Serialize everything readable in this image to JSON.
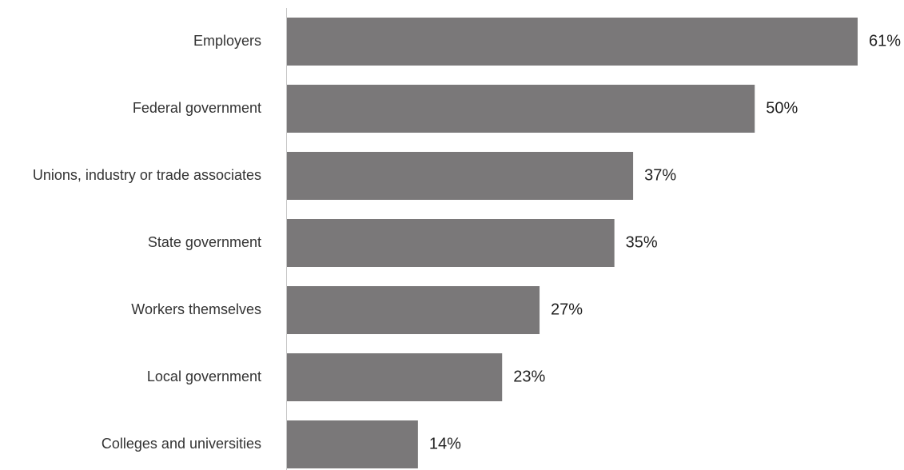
{
  "chart_data": {
    "type": "bar",
    "orientation": "horizontal",
    "categories": [
      "Employers",
      "Federal government",
      "Unions, industry or trade associates",
      "State government",
      "Workers themselves",
      "Local government",
      "Colleges and universities"
    ],
    "values": [
      61,
      50,
      37,
      35,
      27,
      23,
      14
    ],
    "value_labels": [
      "61%",
      "50%",
      "37%",
      "35%",
      "27%",
      "23%",
      "14%"
    ],
    "title": "",
    "xlabel": "",
    "ylabel": "",
    "xlim": [
      0,
      61
    ],
    "grid": false,
    "legend": "none",
    "colors": {
      "bar": "#7a7879",
      "axis": "#c8c8c8",
      "category_text": "#333333",
      "value_text": "#222222"
    }
  }
}
